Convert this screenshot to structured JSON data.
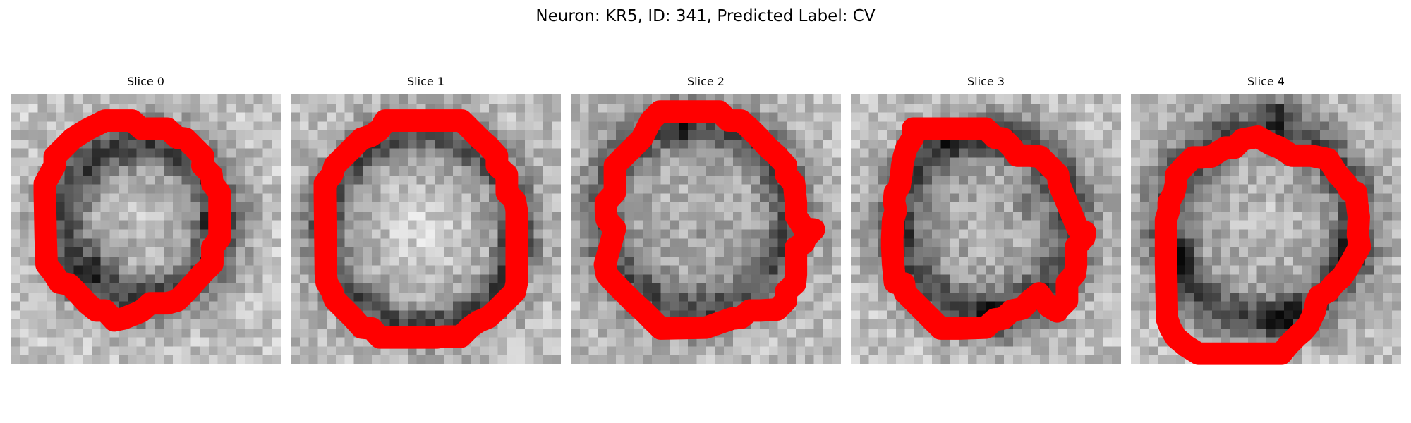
{
  "figure": {
    "title": "Neuron: KR5, ID: 341, Predicted Label: CV"
  },
  "contour_color": "#ff0000",
  "image_style": {
    "colormap": "grayscale",
    "pixel_grid": 30
  },
  "slices": [
    {
      "title": "Slice 0"
    },
    {
      "title": "Slice 1"
    },
    {
      "title": "Slice 2"
    },
    {
      "title": "Slice 3"
    },
    {
      "title": "Slice 4"
    }
  ]
}
